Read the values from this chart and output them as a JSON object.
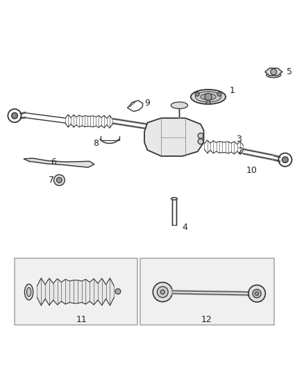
{
  "background_color": "#ffffff",
  "figure_width": 4.38,
  "figure_height": 5.33,
  "dpi": 100,
  "line_color": "#333333",
  "part_color": "#555555",
  "label_color": "#222222",
  "label_fontsize": 9
}
